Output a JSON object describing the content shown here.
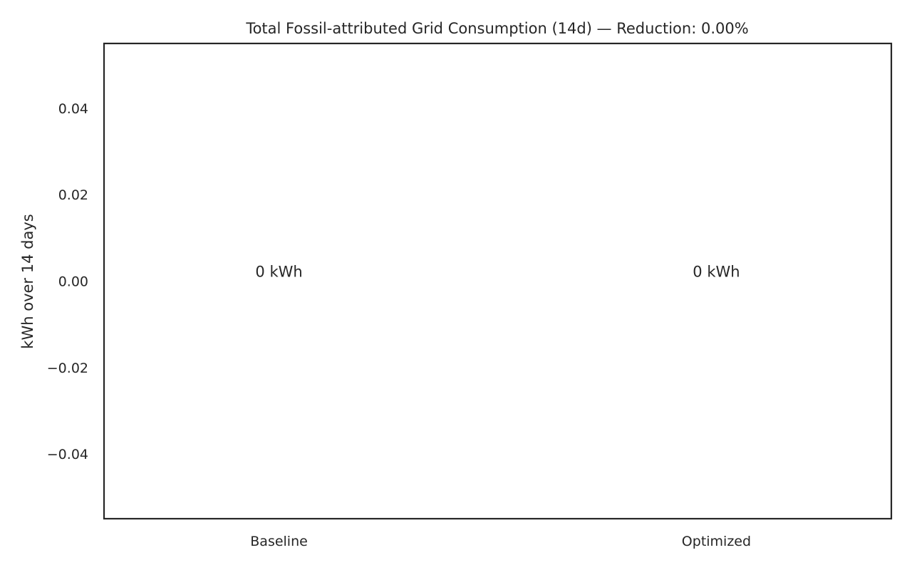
{
  "chart_data": {
    "type": "bar",
    "title": "Total Fossil-attributed Grid Consumption (14d) — Reduction: 0.00%",
    "xlabel": "",
    "ylabel": "kWh over 14 days",
    "categories": [
      "Baseline",
      "Optimized"
    ],
    "values": [
      0,
      0
    ],
    "data_labels": [
      "0 kWh",
      "0 kWh"
    ],
    "ylim": [
      -0.055,
      0.055
    ],
    "yticks": [
      -0.04,
      -0.02,
      0.0,
      0.02,
      0.04
    ],
    "ytick_labels": [
      "−0.04",
      "−0.02",
      "0.00",
      "0.02",
      "0.04"
    ],
    "grid": false,
    "bar_color": "#4c72b0",
    "text_color": "#262626",
    "frame_color": "#262626"
  }
}
